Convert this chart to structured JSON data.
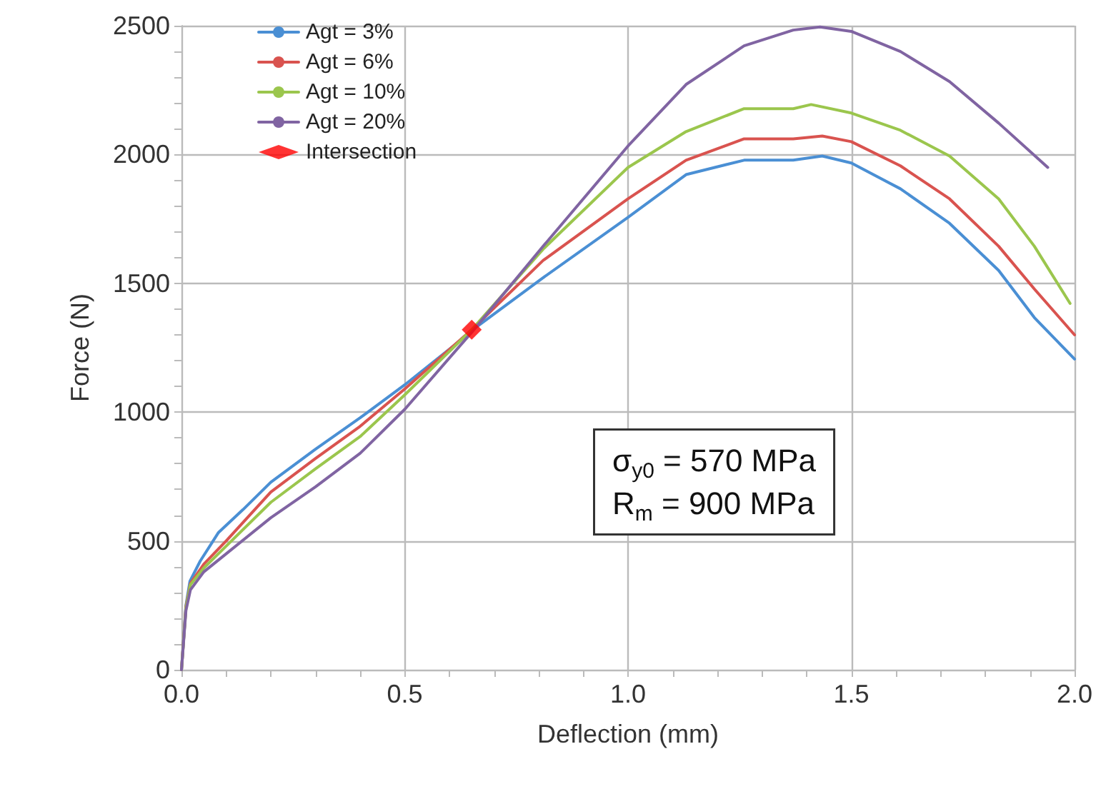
{
  "chart_data": {
    "type": "line",
    "xlabel": "Deflection (mm)",
    "ylabel": "Force (N)",
    "xlim": [
      0,
      2
    ],
    "ylim": [
      0,
      2500
    ],
    "xticks": [
      {
        "value": 0,
        "label": "0.0"
      },
      {
        "value": 0.1,
        "label": null
      },
      {
        "value": 0.2,
        "label": null
      },
      {
        "value": 0.3,
        "label": null
      },
      {
        "value": 0.4,
        "label": null
      },
      {
        "value": 0.5,
        "label": "0.5"
      },
      {
        "value": 0.6,
        "label": null
      },
      {
        "value": 0.7,
        "label": null
      },
      {
        "value": 0.8,
        "label": null
      },
      {
        "value": 0.9,
        "label": null
      },
      {
        "value": 1,
        "label": "1.0"
      },
      {
        "value": 1.1,
        "label": null
      },
      {
        "value": 1.2,
        "label": null
      },
      {
        "value": 1.3,
        "label": null
      },
      {
        "value": 1.4,
        "label": null
      },
      {
        "value": 1.5,
        "label": "1.5"
      },
      {
        "value": 1.6,
        "label": null
      },
      {
        "value": 1.7,
        "label": null
      },
      {
        "value": 1.8,
        "label": null
      },
      {
        "value": 1.9,
        "label": null
      },
      {
        "value": 2,
        "label": "2.0"
      }
    ],
    "yticks": [
      0,
      {
        "value": 100,
        "label": null
      },
      {
        "value": 200,
        "label": null
      },
      {
        "value": 300,
        "label": null
      },
      {
        "value": 400,
        "label": null
      },
      500,
      {
        "value": 600,
        "label": null
      },
      {
        "value": 700,
        "label": null
      },
      {
        "value": 800,
        "label": null
      },
      {
        "value": 900,
        "label": null
      },
      1000,
      {
        "value": 1100,
        "label": null
      },
      {
        "value": 1200,
        "label": null
      },
      {
        "value": 1300,
        "label": null
      },
      {
        "value": 1400,
        "label": null
      },
      1500,
      {
        "value": 1600,
        "label": null
      },
      {
        "value": 1700,
        "label": null
      },
      {
        "value": 1800,
        "label": null
      },
      {
        "value": 1900,
        "label": null
      },
      2000,
      {
        "value": 2100,
        "label": null
      },
      {
        "value": 2200,
        "label": null
      },
      {
        "value": 2300,
        "label": null
      },
      {
        "value": 2400,
        "label": null
      },
      2500
    ],
    "grid": true,
    "legend": "top left",
    "marker": "none",
    "line_style": "solid",
    "annotations": [
      "σ$_{y0}$ = 570 MPa",
      "R$_{m}$ = 900 MPa"
    ],
    "series": [
      {
        "name": "Agt = 3%",
        "color": "#4a8fd4",
        "x": [
          0,
          0.01,
          0.019,
          0.042,
          0.083,
          0.138,
          0.2,
          0.3,
          0.4,
          0.5,
          0.62,
          0.65,
          0.81,
          1.0,
          1.13,
          1.26,
          1.37,
          1.435,
          1.5,
          1.61,
          1.72,
          1.83,
          1.91,
          2.0
        ],
        "values": [
          0,
          250,
          344,
          422,
          533,
          622,
          728,
          856,
          978,
          1106,
          1272,
          1317,
          1522,
          1756,
          1922,
          1978,
          1978,
          1994,
          1967,
          1867,
          1733,
          1550,
          1367,
          1206
        ]
      },
      {
        "name": "Agt = 6%",
        "color": "#d9534f",
        "x": [
          0,
          0.01,
          0.02,
          0.05,
          0.1,
          0.2,
          0.3,
          0.4,
          0.5,
          0.65,
          0.81,
          1.0,
          1.13,
          1.26,
          1.37,
          1.435,
          1.5,
          1.61,
          1.72,
          1.83,
          1.91,
          2.0
        ],
        "values": [
          0,
          245,
          335,
          410,
          500,
          690,
          820,
          945,
          1090,
          1320,
          1589,
          1828,
          1978,
          2061,
          2061,
          2072,
          2050,
          1956,
          1828,
          1644,
          1478,
          1300
        ]
      },
      {
        "name": "Agt = 10%",
        "color": "#9bc64d",
        "x": [
          0,
          0.01,
          0.02,
          0.05,
          0.1,
          0.2,
          0.3,
          0.4,
          0.5,
          0.65,
          0.81,
          1.0,
          1.13,
          1.26,
          1.37,
          1.41,
          1.5,
          1.61,
          1.72,
          1.83,
          1.91,
          1.99
        ],
        "values": [
          0,
          240,
          330,
          395,
          480,
          650,
          780,
          905,
          1067,
          1320,
          1633,
          1950,
          2089,
          2178,
          2178,
          2194,
          2161,
          2094,
          1994,
          1828,
          1644,
          1422
        ]
      },
      {
        "name": "Agt = 20%",
        "color": "#8064a2",
        "x": [
          0,
          0.01,
          0.02,
          0.05,
          0.1,
          0.2,
          0.3,
          0.4,
          0.5,
          0.65,
          0.81,
          1.0,
          1.13,
          1.26,
          1.37,
          1.43,
          1.5,
          1.61,
          1.72,
          1.83,
          1.94
        ],
        "values": [
          0,
          230,
          310,
          380,
          450,
          590,
          710,
          840,
          1011,
          1310,
          1644,
          2033,
          2272,
          2422,
          2483,
          2495,
          2478,
          2400,
          2283,
          2122,
          1950
        ]
      },
      {
        "name": "Intersection",
        "type": "scatter",
        "marker": "diamond",
        "color": "#ff0000",
        "x": [
          0.65
        ],
        "values": [
          1320
        ]
      }
    ]
  }
}
